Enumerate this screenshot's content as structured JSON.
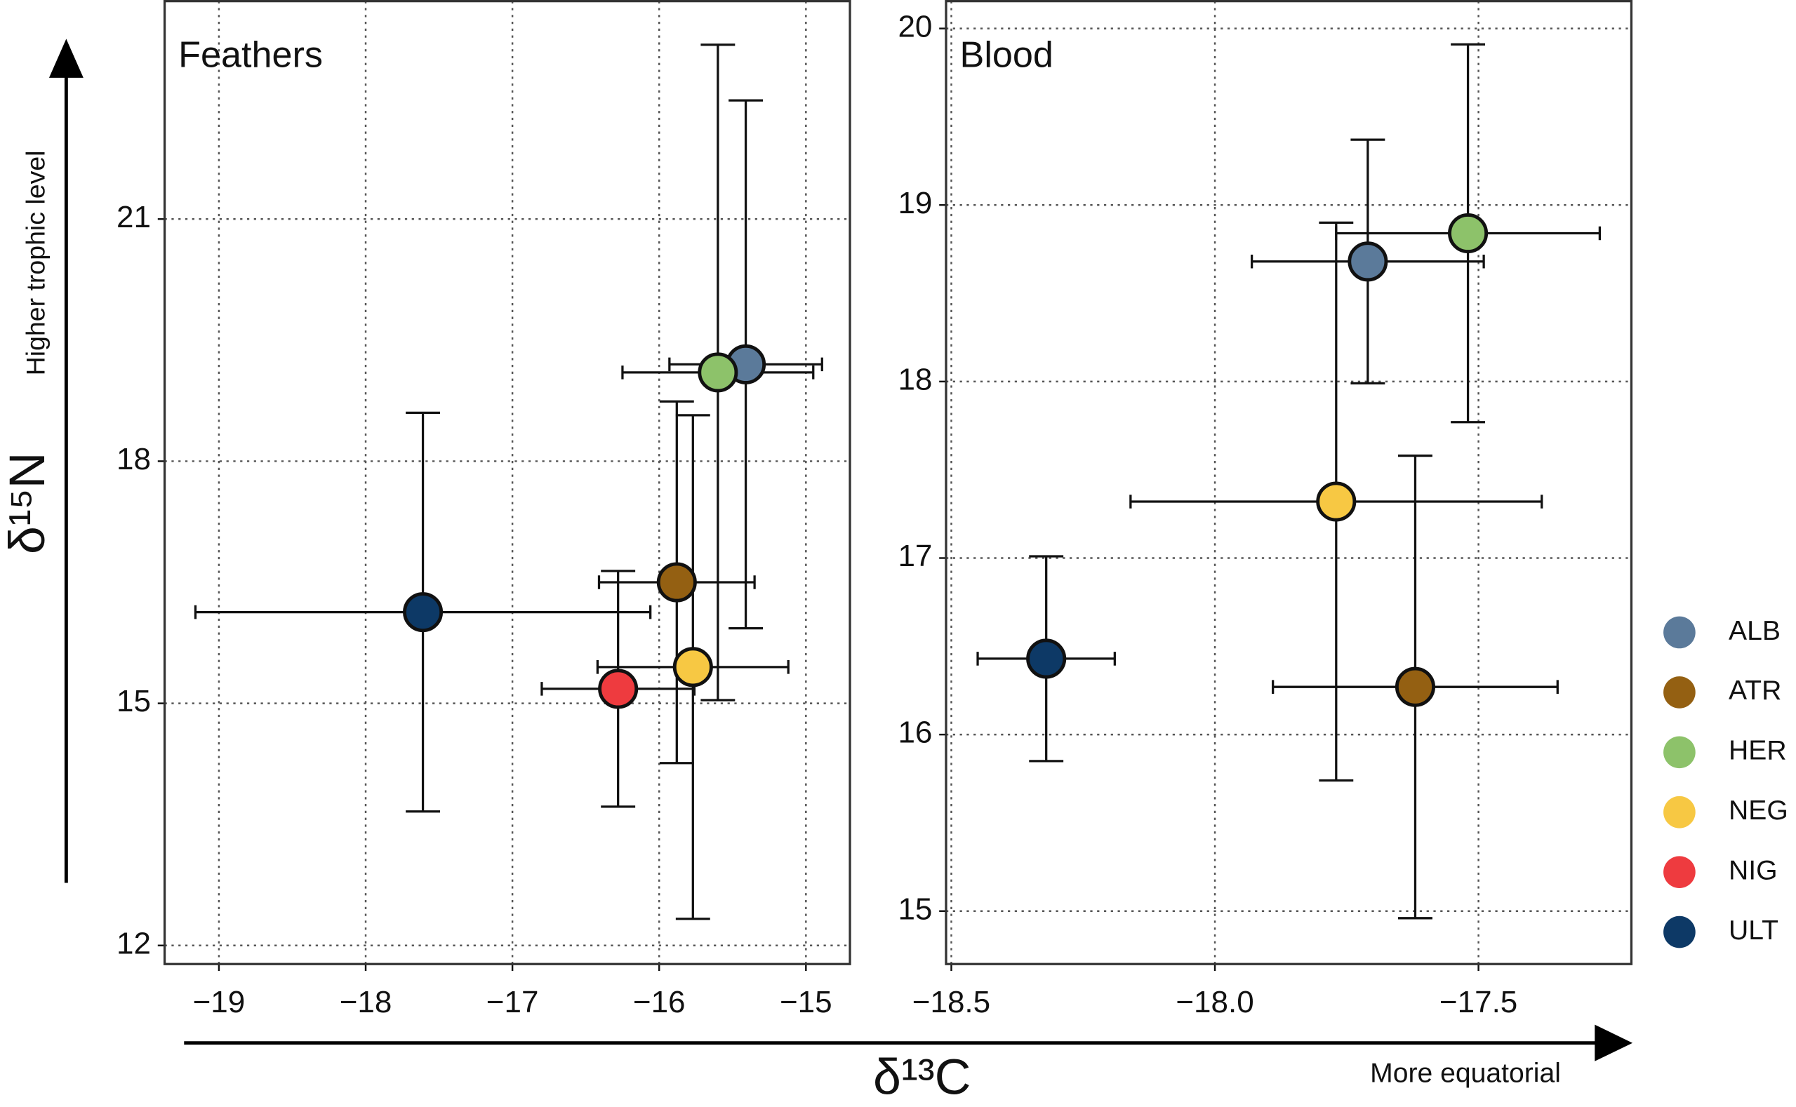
{
  "chart_data": [
    {
      "type": "scatter",
      "title": "Feathers",
      "xlim": [
        -19.37,
        -14.7
      ],
      "ylim": [
        11.77,
        23.7
      ],
      "xticks": [
        {
          "value": -19,
          "label": "−19"
        },
        {
          "value": -18,
          "label": "−18"
        },
        {
          "value": -17,
          "label": "−17"
        },
        {
          "value": -16,
          "label": "−16"
        },
        {
          "value": -15,
          "label": "−15"
        }
      ],
      "yticks": [
        12,
        15,
        18,
        21
      ],
      "grid": true,
      "series": [
        {
          "name": "ALB",
          "color": "#5b7a9a",
          "x": [
            -15.41
          ],
          "values": [
            19.2
          ],
          "xerr": [
            0.52
          ],
          "yerr": [
            3.27
          ]
        },
        {
          "name": "ATR",
          "color": "#946012",
          "x": [
            -15.88
          ],
          "values": [
            16.5
          ],
          "xerr": [
            0.53
          ],
          "yerr": [
            2.24
          ]
        },
        {
          "name": "HER",
          "color": "#8dc26a",
          "x": [
            -15.6
          ],
          "values": [
            19.1
          ],
          "xerr": [
            0.65
          ],
          "yerr": [
            4.06
          ]
        },
        {
          "name": "NEG",
          "color": "#f7c843",
          "x": [
            -15.77
          ],
          "values": [
            15.45
          ],
          "xerr": [
            0.65
          ],
          "yerr": [
            3.12
          ]
        },
        {
          "name": "NIG",
          "color": "#ee3b3f",
          "x": [
            -16.28
          ],
          "values": [
            15.18
          ],
          "xerr": [
            0.52
          ],
          "yerr": [
            1.46
          ]
        },
        {
          "name": "ULT",
          "color": "#0d3966",
          "x": [
            -17.61
          ],
          "values": [
            16.13
          ],
          "xerr": [
            1.55
          ],
          "yerr": [
            2.47
          ]
        }
      ]
    },
    {
      "type": "scatter",
      "title": "Blood",
      "xlim": [
        -18.51,
        -17.21
      ],
      "ylim": [
        14.7,
        20.155
      ],
      "xticks": [
        {
          "value": -18.5,
          "label": "−18.5"
        },
        {
          "value": -18.0,
          "label": "−18.0"
        },
        {
          "value": -17.5,
          "label": "−17.5"
        }
      ],
      "yticks": [
        15,
        16,
        17,
        18,
        19,
        20
      ],
      "grid": true,
      "series": [
        {
          "name": "ALB",
          "color": "#5b7a9a",
          "x": [
            -17.71
          ],
          "values": [
            18.68
          ],
          "xerr": [
            0.22
          ],
          "yerr": [
            0.69
          ]
        },
        {
          "name": "ATR",
          "color": "#946012",
          "x": [
            -17.62
          ],
          "values": [
            16.27
          ],
          "xerr": [
            0.27
          ],
          "yerr": [
            1.31
          ]
        },
        {
          "name": "HER",
          "color": "#8dc26a",
          "x": [
            -17.52
          ],
          "values": [
            18.84
          ],
          "xerr": [
            0.25
          ],
          "yerr": [
            1.07
          ]
        },
        {
          "name": "NEG",
          "color": "#f7c843",
          "x": [
            -17.77
          ],
          "values": [
            17.32
          ],
          "xerr": [
            0.39
          ],
          "yerr": [
            1.58
          ]
        },
        {
          "name": "ULT",
          "color": "#0d3966",
          "x": [
            -18.32
          ],
          "values": [
            16.43
          ],
          "xerr": [
            0.13
          ],
          "yerr": [
            0.58
          ]
        }
      ]
    }
  ],
  "ylabel": "δ¹⁵N",
  "xlabel": "δ¹³C",
  "y_annotation": "Higher trophic level",
  "x_annotation": "More equatorial"
}
